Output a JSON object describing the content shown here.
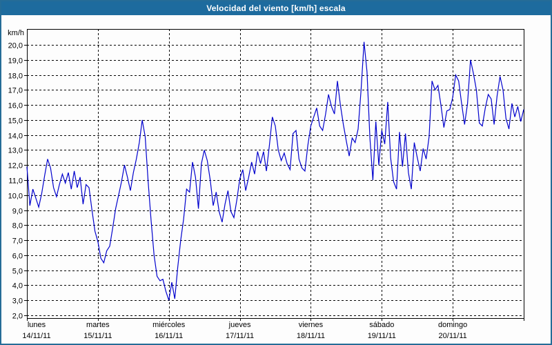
{
  "window": {
    "title": "Velocidad del viento [km/h] escala"
  },
  "colors": {
    "titlebar_bg": "#1d6b9e",
    "titlebar_text": "#ffffff",
    "window_border": "#256c97",
    "plot_background": "#fdfdfd",
    "grid_color": "#000000",
    "line_color": "#0000cd"
  },
  "chart_data": {
    "type": "line",
    "title": "Velocidad del viento [km/h] escala",
    "ylabel": "km/h",
    "ylim": [
      2.0,
      20.2
    ],
    "grid": "dashed",
    "legend_position": "none",
    "y_ticks": {
      "values": [
        2,
        3,
        4,
        5,
        6,
        7,
        8,
        9,
        10,
        11,
        12,
        13,
        14,
        15,
        16,
        17,
        18,
        19,
        20
      ],
      "labels": [
        "2,0",
        "3,0",
        "4,0",
        "5,0",
        "6,0",
        "7,0",
        "8,0",
        "9,0",
        "10,0",
        "11,0",
        "12,0",
        "13,0",
        "14,0",
        "15,0",
        "16,0",
        "17,0",
        "18,0",
        "19,0",
        "20,0"
      ]
    },
    "x_axis": {
      "hours_per_day": 24,
      "days": [
        {
          "name": "lunes",
          "date": "14/11/11"
        },
        {
          "name": "martes",
          "date": "15/11/11"
        },
        {
          "name": "miércoles",
          "date": "16/11/11"
        },
        {
          "name": "jueves",
          "date": "17/11/11"
        },
        {
          "name": "viernes",
          "date": "18/11/11"
        },
        {
          "name": "sábado",
          "date": "19/11/11"
        },
        {
          "name": "domingo",
          "date": "20/11/11"
        }
      ]
    },
    "series": [
      {
        "name": "Velocidad del viento",
        "unit": "km/h",
        "color": "#0000cd",
        "sampling": "hourly from lunes 14/11/11 00:00 to domingo 20/11/11 24:00",
        "values": [
          11.9,
          9.3,
          10.4,
          9.8,
          9.2,
          10.1,
          11.3,
          12.4,
          11.8,
          10.5,
          9.9,
          10.7,
          11.4,
          10.8,
          11.5,
          10.4,
          11.6,
          10.5,
          11.2,
          9.4,
          10.7,
          10.5,
          9.0,
          7.6,
          6.9,
          5.8,
          5.5,
          6.3,
          6.6,
          7.8,
          9.1,
          10.0,
          10.9,
          12.0,
          11.2,
          10.3,
          11.5,
          12.4,
          13.5,
          15.0,
          13.9,
          10.9,
          8.3,
          6.0,
          4.6,
          4.3,
          4.4,
          3.6,
          3.0,
          4.2,
          3.1,
          5.2,
          7.0,
          8.4,
          10.4,
          10.2,
          12.2,
          11.2,
          9.1,
          12.1,
          13.0,
          12.3,
          11.0,
          9.3,
          10.2,
          8.9,
          8.2,
          9.4,
          10.3,
          8.9,
          8.5,
          9.7,
          11.1,
          11.7,
          10.3,
          11.2,
          12.2,
          11.4,
          12.9,
          12.1,
          12.9,
          11.6,
          13.3,
          15.2,
          14.6,
          13.0,
          12.3,
          12.8,
          12.1,
          11.7,
          14.1,
          14.3,
          12.4,
          11.8,
          11.6,
          13.3,
          14.6,
          15.2,
          15.8,
          14.6,
          14.3,
          15.4,
          16.7,
          15.9,
          15.4,
          17.6,
          16.0,
          14.7,
          13.6,
          12.6,
          13.8,
          13.5,
          14.4,
          17.0,
          20.2,
          18.2,
          13.8,
          11.0,
          14.9,
          12.0,
          14.3,
          13.4,
          16.2,
          12.5,
          10.9,
          10.4,
          14.2,
          11.9,
          14.1,
          11.5,
          10.4,
          13.5,
          12.5,
          11.6,
          13.1,
          12.4,
          13.9,
          17.6,
          17.0,
          17.3,
          16.0,
          14.5,
          15.6,
          15.7,
          16.5,
          18.0,
          17.6,
          16.1,
          14.7,
          16.1,
          19.0,
          18.1,
          17.0,
          14.8,
          14.6,
          15.8,
          16.7,
          16.4,
          14.7,
          16.6,
          17.9,
          17.0,
          15.1,
          14.4,
          16.1,
          15.2,
          15.9,
          14.9,
          15.7
        ]
      }
    ]
  }
}
